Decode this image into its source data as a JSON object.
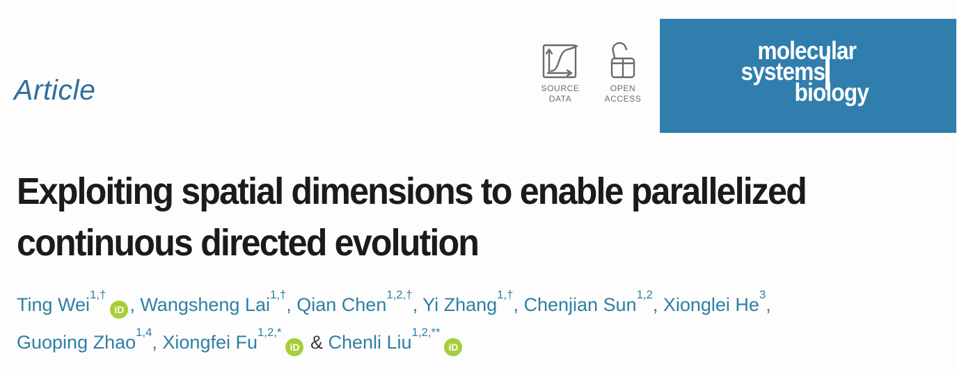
{
  "colors": {
    "journal_box_blue": "#2f7eae",
    "article_label_blue": "#2e6f9e",
    "author_teal": "#2e7fa5",
    "orcid_green": "#a6ce39",
    "badge_gray": "#6a6a6a",
    "title_black": "#1b1b1b"
  },
  "header": {
    "article_label": "Article",
    "badges": [
      {
        "id": "source-data",
        "icon": "chart-curve-icon",
        "label_line1": "SOURCE",
        "label_line2": "DATA"
      },
      {
        "id": "open-access",
        "icon": "open-padlock-icon",
        "label_line1": "OPEN",
        "label_line2": "ACCESS"
      }
    ],
    "journal_logo": {
      "line1": "molecular",
      "line2": "systems",
      "line3": "biology"
    }
  },
  "title": {
    "line1": "Exploiting spatial dimensions to enable parallelized",
    "line2": "continuous directed evolution"
  },
  "authors": {
    "orcid_label": "iD",
    "line1": [
      {
        "name": "Ting Wei",
        "sup": "1,†",
        "orcid": true,
        "sep": ", "
      },
      {
        "name": "Wangsheng Lai",
        "sup": "1,†",
        "orcid": false,
        "sep": ", "
      },
      {
        "name": "Qian Chen",
        "sup": "1,2,†",
        "orcid": false,
        "sep": ", "
      },
      {
        "name": "Yi Zhang",
        "sup": "1,†",
        "orcid": false,
        "sep": ", "
      },
      {
        "name": "Chenjian Sun",
        "sup": "1,2",
        "orcid": false,
        "sep": ", "
      },
      {
        "name": "Xionglei He",
        "sup": "3",
        "orcid": false,
        "sep": ","
      }
    ],
    "line2": [
      {
        "name": "Guoping Zhao",
        "sup": "1,4",
        "orcid": false,
        "sep": ", "
      },
      {
        "name": "Xiongfei Fu",
        "sup": "1,2,*",
        "orcid": true,
        "sep": " & "
      },
      {
        "name": "Chenli Liu",
        "sup": "1,2,**",
        "orcid": true,
        "sep": ""
      }
    ]
  }
}
